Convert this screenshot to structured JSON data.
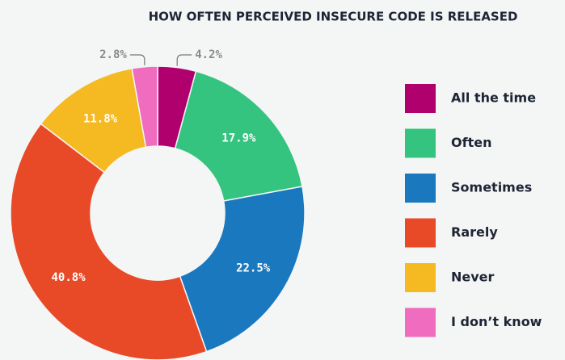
{
  "chart_data": {
    "type": "donut",
    "title": "HOW OFTEN PERCEIVED INSECURE CODE IS RELEASED",
    "categories": [
      "All the time",
      "Often",
      "Sometimes",
      "Rarely",
      "Never",
      "I don’t know"
    ],
    "values": [
      4.2,
      17.9,
      22.5,
      40.8,
      11.8,
      2.8
    ],
    "value_labels": [
      "4.2%",
      "17.9%",
      "22.5%",
      "40.8%",
      "11.8%",
      "2.8%"
    ],
    "colors": [
      "#b0006e",
      "#35c47f",
      "#1a78be",
      "#e84a27",
      "#f5b922",
      "#f06cbf"
    ],
    "legend": "right"
  }
}
